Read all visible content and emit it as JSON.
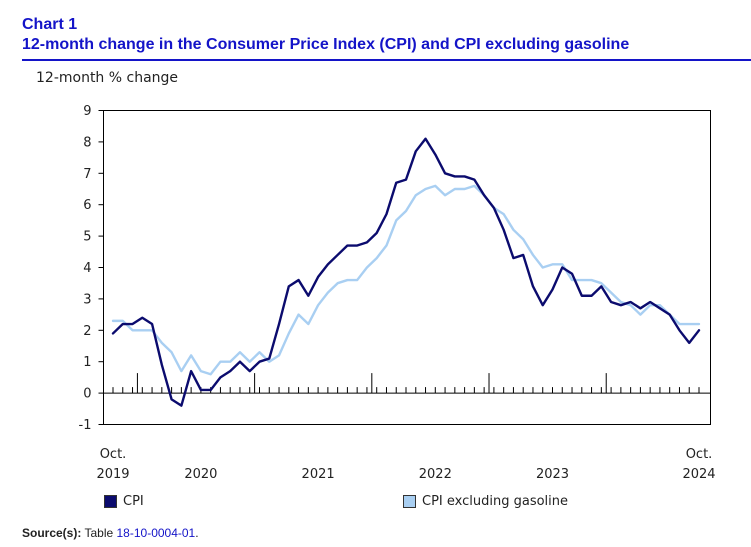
{
  "header": {
    "chart_label": "Chart 1",
    "title": "12-month change in the Consumer Price Index (CPI) and CPI excluding gasoline"
  },
  "source": {
    "label": "Source(s):",
    "text": "Table",
    "link": "18-10-0004-01",
    "suffix": "."
  },
  "colors": {
    "title": "#1414c8",
    "cpi": "#0b0b6e",
    "cpi_ex_gas": "#a9cff2"
  },
  "chart_data": {
    "type": "line",
    "title": "12-month change in the Consumer Price Index (CPI) and CPI excluding gasoline",
    "ylabel": "12-month % change",
    "xlabel": "",
    "ylim": [
      -1,
      9
    ],
    "yticks": [
      -1,
      0,
      1,
      2,
      3,
      4,
      5,
      6,
      7,
      8,
      9
    ],
    "x": [
      "2019-10",
      "2019-11",
      "2019-12",
      "2020-01",
      "2020-02",
      "2020-03",
      "2020-04",
      "2020-05",
      "2020-06",
      "2020-07",
      "2020-08",
      "2020-09",
      "2020-10",
      "2020-11",
      "2020-12",
      "2021-01",
      "2021-02",
      "2021-03",
      "2021-04",
      "2021-05",
      "2021-06",
      "2021-07",
      "2021-08",
      "2021-09",
      "2021-10",
      "2021-11",
      "2021-12",
      "2022-01",
      "2022-02",
      "2022-03",
      "2022-04",
      "2022-05",
      "2022-06",
      "2022-07",
      "2022-08",
      "2022-09",
      "2022-10",
      "2022-11",
      "2022-12",
      "2023-01",
      "2023-02",
      "2023-03",
      "2023-04",
      "2023-05",
      "2023-06",
      "2023-07",
      "2023-08",
      "2023-09",
      "2023-10",
      "2023-11",
      "2023-12",
      "2024-01",
      "2024-02",
      "2024-03",
      "2024-04",
      "2024-05",
      "2024-06",
      "2024-07",
      "2024-08",
      "2024-09",
      "2024-10"
    ],
    "x_tick_labels": [
      {
        "index": 0,
        "lines": [
          "Oct.",
          "2019"
        ]
      },
      {
        "index": 9,
        "lines": [
          "2020"
        ]
      },
      {
        "index": 21,
        "lines": [
          "2021"
        ]
      },
      {
        "index": 33,
        "lines": [
          "2022"
        ]
      },
      {
        "index": 45,
        "lines": [
          "2023"
        ]
      },
      {
        "index": 60,
        "lines": [
          "Oct.",
          "2024"
        ]
      }
    ],
    "year_boundaries": [
      3,
      15,
      27,
      39,
      51
    ],
    "series": [
      {
        "name": "CPI",
        "color": "#0b0b6e",
        "values": [
          1.9,
          2.2,
          2.2,
          2.4,
          2.2,
          0.9,
          -0.2,
          -0.4,
          0.7,
          0.1,
          0.1,
          0.5,
          0.7,
          1.0,
          0.7,
          1.0,
          1.1,
          2.2,
          3.4,
          3.6,
          3.1,
          3.7,
          4.1,
          4.4,
          4.7,
          4.7,
          4.8,
          5.1,
          5.7,
          6.7,
          6.8,
          7.7,
          8.1,
          7.6,
          7.0,
          6.9,
          6.9,
          6.8,
          6.3,
          5.9,
          5.2,
          4.3,
          4.4,
          3.4,
          2.8,
          3.3,
          4.0,
          3.8,
          3.1,
          3.1,
          3.4,
          2.9,
          2.8,
          2.9,
          2.7,
          2.9,
          2.7,
          2.5,
          2.0,
          1.6,
          2.0
        ]
      },
      {
        "name": "CPI excluding gasoline",
        "color": "#a9cff2",
        "values": [
          2.3,
          2.3,
          2.0,
          2.0,
          2.0,
          1.6,
          1.3,
          0.7,
          1.2,
          0.7,
          0.6,
          1.0,
          1.0,
          1.3,
          1.0,
          1.3,
          1.0,
          1.2,
          1.9,
          2.5,
          2.2,
          2.8,
          3.2,
          3.5,
          3.6,
          3.6,
          4.0,
          4.3,
          4.7,
          5.5,
          5.8,
          6.3,
          6.5,
          6.6,
          6.3,
          6.5,
          6.5,
          6.6,
          6.3,
          5.9,
          5.7,
          5.2,
          4.9,
          4.4,
          4.0,
          4.1,
          4.1,
          3.6,
          3.6,
          3.6,
          3.5,
          3.2,
          2.9,
          2.8,
          2.5,
          2.8,
          2.8,
          2.5,
          2.2,
          2.2,
          2.2
        ]
      }
    ],
    "legend": [
      "CPI",
      "CPI excluding gasoline"
    ]
  }
}
